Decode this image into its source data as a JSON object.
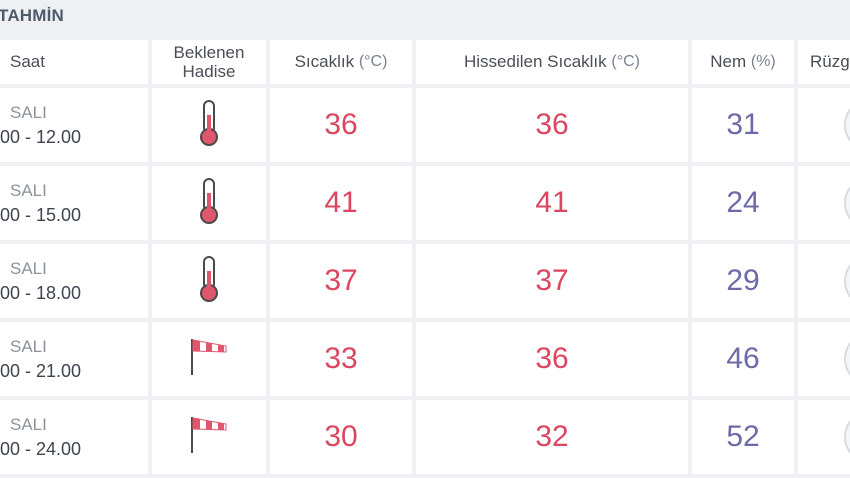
{
  "section_title": "TAHMİN",
  "headers": {
    "time": "Saat",
    "event_line1": "Beklenen",
    "event_line2": "Hadise",
    "temp": "Sıcaklık",
    "temp_unit": "(°C)",
    "feels": "Hissedilen Sıcaklık",
    "feels_unit": "(°C)",
    "hum": "Nem",
    "hum_unit": "(%)",
    "wind": "Rüzg"
  },
  "rows": [
    {
      "day": "SALI",
      "time": "00 - 12.00",
      "icon": "thermometer-icon",
      "temp": "36",
      "feels": "36",
      "hum": "31"
    },
    {
      "day": "SALI",
      "time": "00 - 15.00",
      "icon": "thermometer-icon",
      "temp": "41",
      "feels": "41",
      "hum": "24"
    },
    {
      "day": "SALI",
      "time": "00 - 18.00",
      "icon": "thermometer-icon",
      "temp": "37",
      "feels": "37",
      "hum": "29"
    },
    {
      "day": "SALI",
      "time": "00 - 21.00",
      "icon": "windsock-icon",
      "temp": "33",
      "feels": "36",
      "hum": "46"
    },
    {
      "day": "SALI",
      "time": "00 - 24.00",
      "icon": "windsock-icon",
      "temp": "30",
      "feels": "32",
      "hum": "52"
    }
  ],
  "colors": {
    "temperature": "#dd4660",
    "humidity": "#6c6aa8",
    "background": "#eef0f4"
  }
}
